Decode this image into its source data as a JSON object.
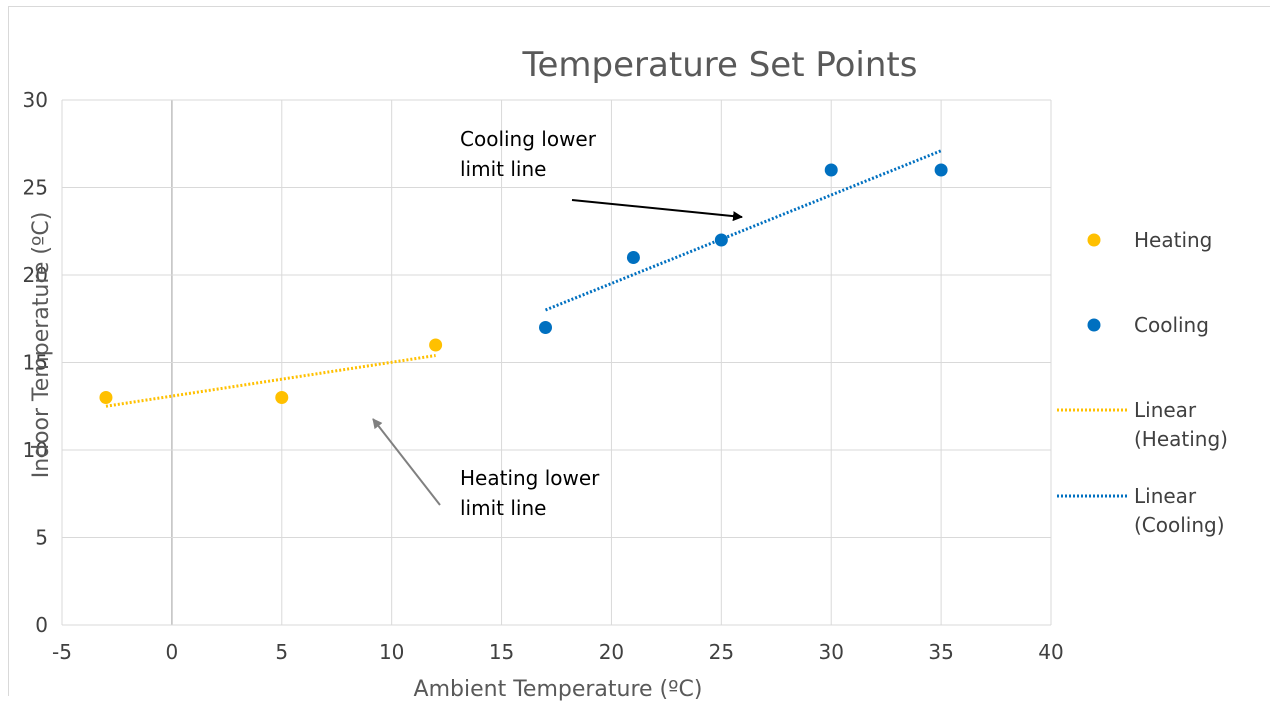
{
  "chart_data": {
    "type": "scatter",
    "title": "Temperature Set Points",
    "xlabel": "Ambient Temperature (ºC)",
    "ylabel": "Indoor Temperature (ºC)",
    "xlim": [
      -5,
      40
    ],
    "ylim": [
      0,
      30
    ],
    "x_ticks": [
      -5,
      0,
      5,
      10,
      15,
      20,
      25,
      30,
      35,
      40
    ],
    "y_ticks": [
      0,
      5,
      10,
      15,
      20,
      25,
      30
    ],
    "grid": true,
    "legend_position": "right",
    "series": [
      {
        "name": "Heating",
        "color": "#FFC000",
        "points": [
          [
            -3,
            13
          ],
          [
            5,
            13
          ],
          [
            12,
            16
          ]
        ]
      },
      {
        "name": "Cooling",
        "color": "#0070C0",
        "points": [
          [
            17,
            17
          ],
          [
            21,
            21
          ],
          [
            25,
            22
          ],
          [
            30,
            26
          ],
          [
            35,
            26
          ]
        ]
      }
    ],
    "trendlines": [
      {
        "name": "Linear (Heating)",
        "label_lines": [
          "Linear",
          "(Heating)"
        ],
        "color": "#FFC000",
        "from": [
          -3,
          12.5
        ],
        "to": [
          12,
          15.4
        ]
      },
      {
        "name": "Linear (Cooling)",
        "label_lines": [
          "Linear",
          "(Cooling)"
        ],
        "color": "#0070C0",
        "from": [
          17,
          18.0
        ],
        "to": [
          35,
          27.1
        ]
      }
    ],
    "annotations": [
      {
        "lines": [
          "Cooling lower",
          "limit line"
        ],
        "arrow_color": "#000000"
      },
      {
        "lines": [
          "Heating lower",
          "limit line"
        ],
        "arrow_color": "#808080"
      }
    ]
  }
}
